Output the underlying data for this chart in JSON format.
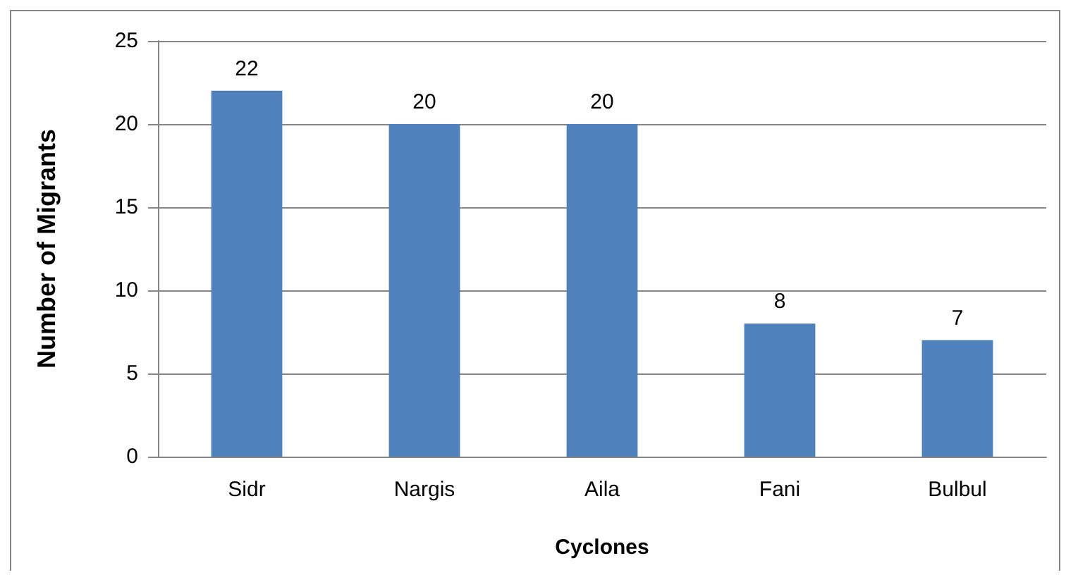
{
  "chart_data": {
    "type": "bar",
    "xlabel": "Cyclones",
    "ylabel": "Number of Migrants",
    "categories": [
      "Sidr",
      "Nargis",
      "Aila",
      "Fani",
      "Bulbul"
    ],
    "values": [
      22,
      20,
      20,
      8,
      7
    ],
    "color": "#4f81bd",
    "ylim": [
      0,
      25
    ],
    "yticks": [
      0,
      5,
      10,
      15,
      20,
      25
    ],
    "grid": "y",
    "data_labels": true
  }
}
